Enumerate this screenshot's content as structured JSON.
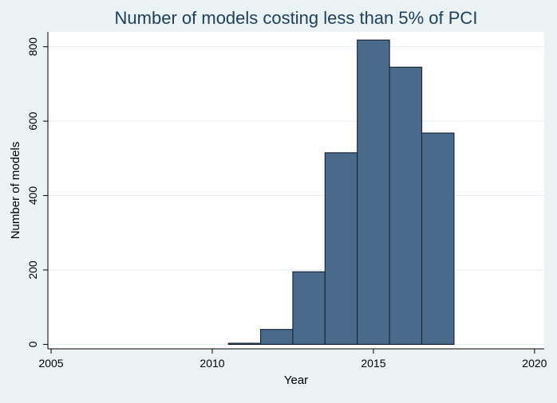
{
  "chart_data": {
    "type": "bar",
    "title": "Number of models costing less than 5% of PCI",
    "xlabel": "Year",
    "ylabel": "Number of models",
    "x_ticks": [
      "2005",
      "2010",
      "2015",
      "2020"
    ],
    "y_ticks": [
      "0",
      "200",
      "400",
      "600",
      "800"
    ],
    "xlim": [
      2004.9,
      2020.3
    ],
    "ylim": [
      -12,
      840
    ],
    "grid": true,
    "legend": "none",
    "categories": [
      "2011",
      "2012",
      "2013",
      "2014",
      "2015",
      "2016",
      "2017"
    ],
    "values": [
      3,
      40,
      195,
      515,
      818,
      745,
      568
    ],
    "bar_color": "#4a6a8c",
    "bar_edge_color": "#1a2a3a",
    "background_color": "#eaf2f3",
    "plot_background_color": "#ffffff",
    "grid_color": "#e6edf0",
    "title_color": "#1f3e5a"
  }
}
